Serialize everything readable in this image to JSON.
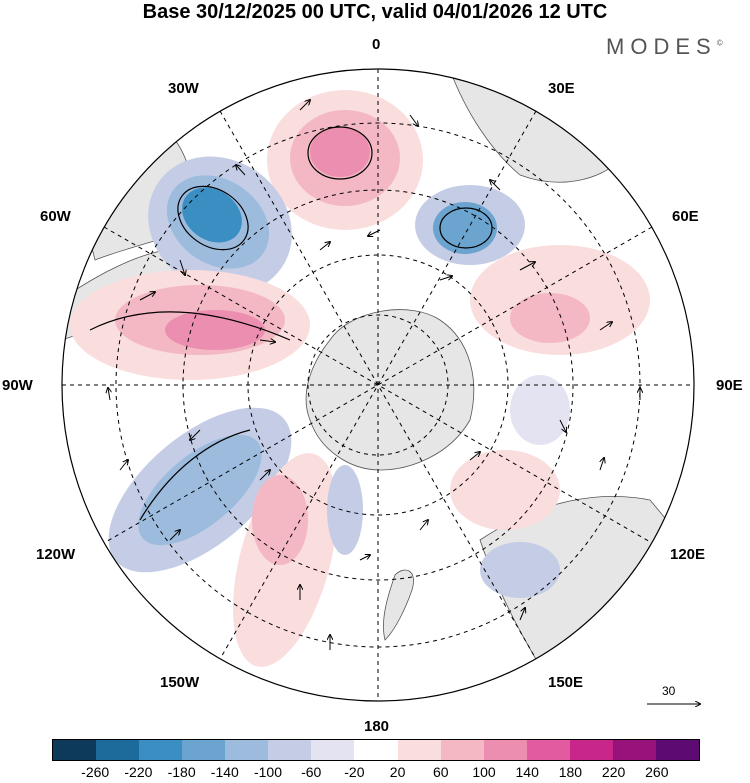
{
  "title": "Base 30/12/2025 00 UTC, valid 04/01/2026 12 UTC",
  "brand": {
    "name": "MODES",
    "mark": "©"
  },
  "longitude_labels": {
    "lon_0": "0",
    "lon_30e": "30E",
    "lon_60e": "60E",
    "lon_90e": "90E",
    "lon_120e": "120E",
    "lon_150e": "150E",
    "lon_180": "180",
    "lon_150w": "150W",
    "lon_120w": "120W",
    "lon_90w": "90W",
    "lon_60w": "60W",
    "lon_30w": "30W"
  },
  "vector_reference": {
    "label": "30",
    "value": 30
  },
  "colorbar": {
    "colors": [
      "#0d3a5a",
      "#1c6b9a",
      "#3b8ec2",
      "#6ba4cf",
      "#9cbbdd",
      "#c5cde6",
      "#e4e3f1",
      "#ffffff",
      "#fadddd",
      "#f3b8c4",
      "#eb8eb0",
      "#e25aa0",
      "#c8268b",
      "#97127b",
      "#5d0b72"
    ],
    "labels": [
      "-260",
      "-220",
      "-180",
      "-140",
      "-100",
      "-60",
      "-20",
      "20",
      "60",
      "100",
      "140",
      "180",
      "220",
      "260"
    ]
  },
  "colors": {
    "land": "#e6e6e6",
    "grid": "#000000",
    "coast": "#555555"
  }
}
